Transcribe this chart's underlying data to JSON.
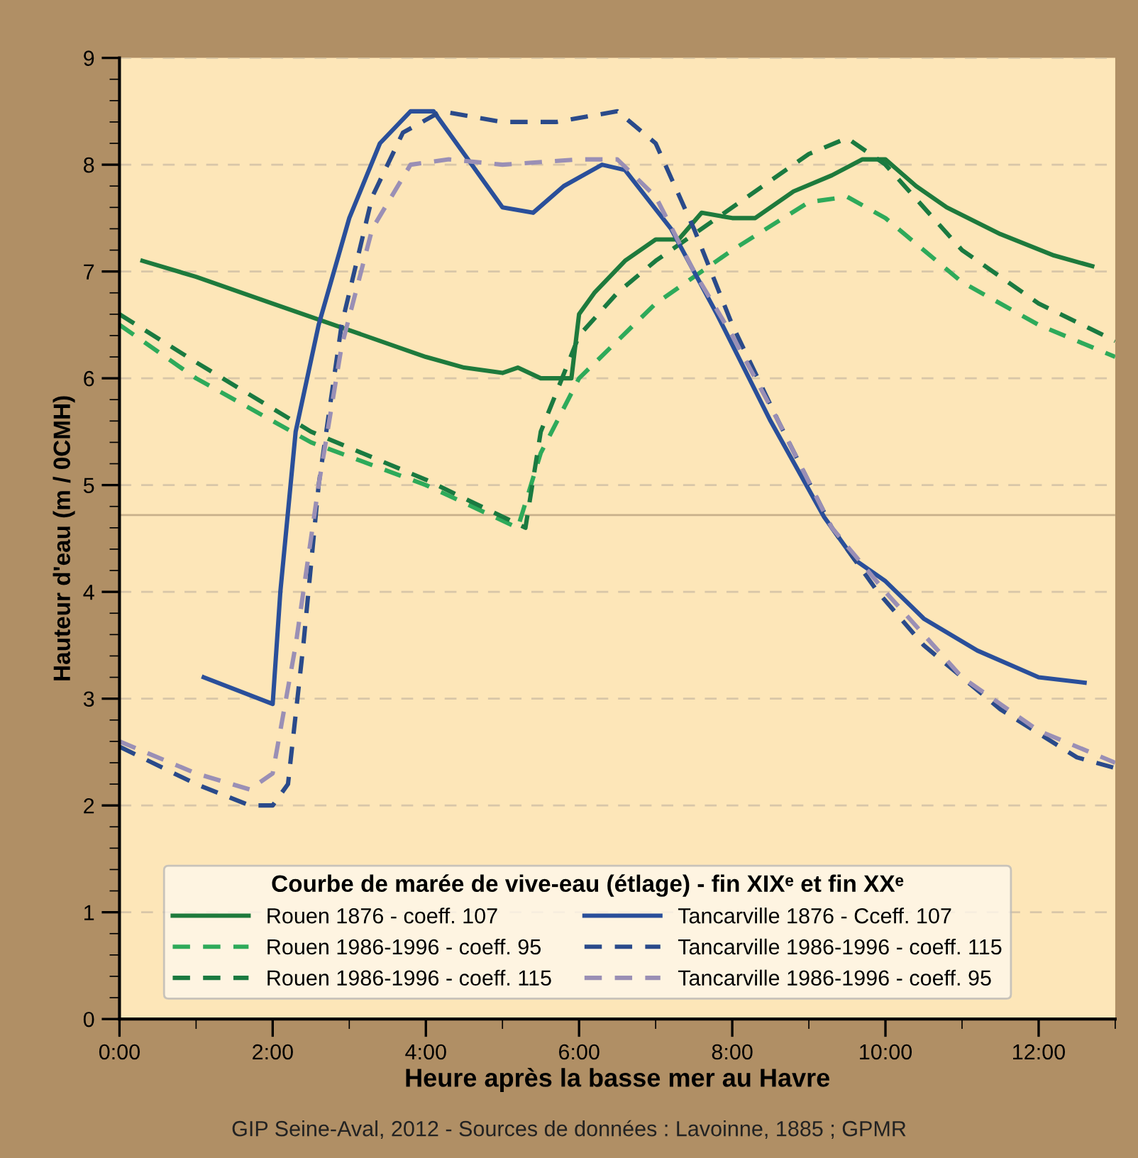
{
  "chart_data": {
    "type": "line",
    "xlabel": "Heure après la basse mer au Havre",
    "ylabel": "Hauteur d'eau (m / 0CMH)",
    "legend_title": "Courbe de marée de vive-eau (étlage) - fin XIXᵉ et fin XXᵉ",
    "annotations": [
      "GIP Seine-Aval, 2012 - Sources de données : Lavoinne, 1885 ; GPMR"
    ],
    "xlim": [
      0,
      13
    ],
    "ylim": [
      0,
      9
    ],
    "xticks": [
      {
        "value": 0,
        "label": "0:00"
      },
      {
        "value": 2,
        "label": "2:00"
      },
      {
        "value": 4,
        "label": "4:00"
      },
      {
        "value": 6,
        "label": "6:00"
      },
      {
        "value": 8,
        "label": "8:00"
      },
      {
        "value": 10,
        "label": "10:00"
      },
      {
        "value": 12,
        "label": "12:00"
      }
    ],
    "yticks": [
      0,
      1,
      2,
      3,
      4,
      5,
      6,
      7,
      8,
      9
    ],
    "grid": "y",
    "legend": "bottom",
    "ref_lines": [
      {
        "axis": "y",
        "value": 4.72,
        "color": "#c8b08a",
        "line_style": "solid"
      }
    ],
    "series": [
      {
        "name": "Rouen 1876 - coeff. 107",
        "color": "#1e7a3c",
        "line_style": "solid",
        "x": [
          0.3,
          1,
          2,
          3,
          4,
          4.5,
          5,
          5.2,
          5.5,
          5.9,
          6.0,
          6.2,
          6.6,
          7.0,
          7.3,
          7.6,
          8.0,
          8.3,
          8.8,
          9.3,
          9.7,
          10.0,
          10.4,
          10.8,
          11.5,
          12.2,
          12.7
        ],
        "values": [
          7.1,
          6.95,
          6.7,
          6.45,
          6.2,
          6.1,
          6.05,
          6.1,
          6.0,
          6.0,
          6.6,
          6.8,
          7.1,
          7.3,
          7.3,
          7.55,
          7.5,
          7.5,
          7.75,
          7.9,
          8.05,
          8.05,
          7.8,
          7.6,
          7.35,
          7.15,
          7.05
        ]
      },
      {
        "name": "Rouen 1986-1996 - coeff. 95",
        "color": "#2eaa5a",
        "line_style": "dashed",
        "x": [
          0,
          1,
          2.5,
          4,
          5.2,
          5.5,
          6,
          7,
          8,
          9,
          9.5,
          10,
          11,
          12,
          13
        ],
        "values": [
          6.5,
          6.0,
          5.4,
          5.0,
          4.6,
          5.3,
          6.0,
          6.7,
          7.2,
          7.65,
          7.7,
          7.5,
          6.9,
          6.5,
          6.2
        ]
      },
      {
        "name": "Rouen 1986-1996 - coeff. 115",
        "color": "#1a7a40",
        "line_style": "dashed",
        "x": [
          0,
          1,
          2.5,
          4,
          5.3,
          5.5,
          6.0,
          6.5,
          7,
          8,
          9,
          9.5,
          10,
          11,
          12,
          13
        ],
        "values": [
          6.6,
          6.15,
          5.5,
          5.05,
          4.6,
          5.5,
          6.4,
          6.8,
          7.1,
          7.6,
          8.1,
          8.25,
          8.0,
          7.2,
          6.7,
          6.35
        ]
      },
      {
        "name": "Tancarville 1876 - Cceff. 107",
        "color": "#2a4f9a",
        "line_style": "solid",
        "x": [
          1.1,
          2.0,
          2.1,
          2.3,
          2.6,
          3.0,
          3.4,
          3.8,
          4.1,
          4.5,
          5.0,
          5.4,
          5.8,
          6.3,
          6.6,
          7.2,
          7.8,
          8.5,
          9.2,
          9.6,
          10.0,
          10.5,
          11.2,
          12,
          12.6
        ],
        "values": [
          3.2,
          2.95,
          4.0,
          5.5,
          6.5,
          7.5,
          8.2,
          8.5,
          8.5,
          8.1,
          7.6,
          7.55,
          7.8,
          8.0,
          7.95,
          7.4,
          6.6,
          5.6,
          4.7,
          4.3,
          4.1,
          3.75,
          3.45,
          3.2,
          3.15
        ]
      },
      {
        "name": "Tancarville 1986-1996 - coeff. 115",
        "color": "#2a4a8a",
        "line_style": "dashed",
        "x": [
          0,
          1,
          1.7,
          2.0,
          2.2,
          2.4,
          2.6,
          2.9,
          3.3,
          3.7,
          4.2,
          5,
          5.7,
          6.5,
          7.0,
          7.5,
          8.0,
          8.6,
          9.3,
          9.9,
          10.5,
          11.5,
          12.5,
          13
        ],
        "values": [
          2.55,
          2.2,
          2.0,
          2.0,
          2.2,
          3.5,
          5.0,
          6.5,
          7.7,
          8.3,
          8.5,
          8.4,
          8.4,
          8.5,
          8.2,
          7.4,
          6.5,
          5.6,
          4.6,
          4.0,
          3.5,
          2.9,
          2.45,
          2.35
        ]
      },
      {
        "name": "Tancarville 1986-1996 - coeff. 95",
        "color": "#9a8fb5",
        "line_style": "dashed",
        "x": [
          0,
          1,
          1.7,
          2.0,
          2.3,
          2.6,
          2.9,
          3.3,
          3.8,
          4.3,
          5,
          6,
          6.5,
          7.0,
          7.5,
          8,
          8.6,
          9.3,
          10,
          11,
          12,
          13
        ],
        "values": [
          2.6,
          2.3,
          2.15,
          2.3,
          3.5,
          5.0,
          6.3,
          7.4,
          8.0,
          8.05,
          8.0,
          8.05,
          8.05,
          7.7,
          7.0,
          6.4,
          5.6,
          4.6,
          4.0,
          3.2,
          2.7,
          2.4
        ]
      }
    ]
  }
}
